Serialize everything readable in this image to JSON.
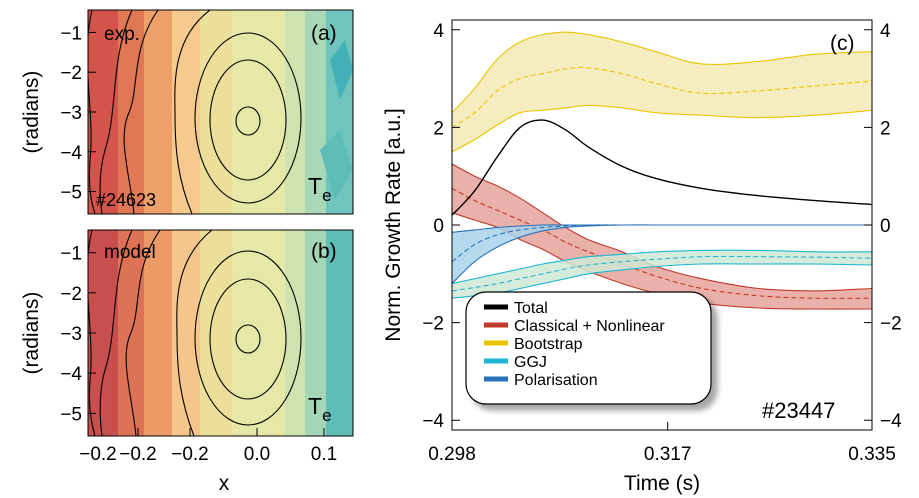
{
  "chart_data": [
    {
      "type": "heatmap",
      "panel_label": "(a)",
      "corner_label": "exp.",
      "shot_label": "#24623",
      "quantity_label_main": "T",
      "quantity_label_sub": "e",
      "ylabel": "(radians)",
      "xlabel": "",
      "y_ticks": [
        "−1",
        "−2",
        "−3",
        "−4",
        "−5"
      ],
      "x_ticks": [],
      "colormap": [
        "#d2544a",
        "#e07755",
        "#eea06a",
        "#f6c98c",
        "#ecdf9a",
        "#e5e8a6",
        "#cfe3b0",
        "#a9d8b6",
        "#70c4be",
        "#43b2b8"
      ],
      "grid": false
    },
    {
      "type": "heatmap",
      "panel_label": "(b)",
      "corner_label": "model",
      "quantity_label_main": "T",
      "quantity_label_sub": "e",
      "ylabel": "(radians)",
      "xlabel": "x",
      "y_ticks": [
        "−1",
        "−2",
        "−3",
        "−4",
        "−5"
      ],
      "x_ticks": [
        "−0.2",
        "−0.2",
        "0.0",
        "0.1"
      ],
      "x_tick_prefix": "−0.2",
      "grid": false
    },
    {
      "type": "line",
      "panel_label": "(c)",
      "shot_label": "#23447",
      "xlabel": "Time (s)",
      "ylabel": "Norm. Growth Rate [a.u.]",
      "xlim": [
        0.298,
        0.335
      ],
      "ylim": [
        -4.2,
        4.2
      ],
      "x_ticks": [
        "0.298",
        "0.317",
        "0.335"
      ],
      "y_ticks": [
        4,
        2,
        0,
        -2,
        -4
      ],
      "y_tick_labels": [
        "4",
        "2",
        "0",
        "−2",
        "−4"
      ],
      "legend_position": "bottom-left",
      "grid": false,
      "x": [
        0.298,
        0.3,
        0.302,
        0.304,
        0.306,
        0.308,
        0.31,
        0.313,
        0.316,
        0.32,
        0.325,
        0.33,
        0.335
      ],
      "series": [
        {
          "name": "Total",
          "color": "#000000",
          "values": [
            0.2,
            0.7,
            1.4,
            2.0,
            2.15,
            1.95,
            1.6,
            1.2,
            0.95,
            0.75,
            0.6,
            0.5,
            0.42
          ]
        },
        {
          "name": "Classical + Nonlinear",
          "color": "#c0392b",
          "fill": "#e6a39b",
          "values": [
            0.75,
            0.5,
            0.3,
            0.1,
            -0.1,
            -0.35,
            -0.55,
            -0.8,
            -1.05,
            -1.3,
            -1.45,
            -1.5,
            -1.5
          ],
          "upper": [
            1.25,
            1.0,
            0.8,
            0.55,
            0.25,
            -0.05,
            -0.3,
            -0.55,
            -0.85,
            -1.1,
            -1.3,
            -1.35,
            -1.3
          ],
          "lower": [
            0.25,
            0.1,
            -0.05,
            -0.3,
            -0.5,
            -0.75,
            -0.95,
            -1.2,
            -1.4,
            -1.6,
            -1.7,
            -1.72,
            -1.72
          ]
        },
        {
          "name": "Bootstrap",
          "color": "#e8c500",
          "fill": "#f3e9b4",
          "values": [
            2.0,
            2.3,
            2.75,
            3.0,
            3.1,
            3.2,
            3.22,
            3.1,
            2.9,
            2.7,
            2.75,
            2.85,
            2.95
          ],
          "upper": [
            2.3,
            2.8,
            3.4,
            3.75,
            3.9,
            3.95,
            3.9,
            3.75,
            3.55,
            3.3,
            3.35,
            3.5,
            3.55
          ],
          "lower": [
            1.5,
            1.75,
            2.05,
            2.3,
            2.35,
            2.4,
            2.45,
            2.4,
            2.3,
            2.25,
            2.2,
            2.25,
            2.35
          ]
        },
        {
          "name": "GGJ",
          "color": "#1fb5d6",
          "fill": "#cfe9d4",
          "values": [
            -1.35,
            -1.28,
            -1.2,
            -1.1,
            -1.0,
            -0.9,
            -0.82,
            -0.75,
            -0.7,
            -0.65,
            -0.65,
            -0.66,
            -0.68
          ],
          "upper": [
            -1.2,
            -1.1,
            -1.0,
            -0.9,
            -0.8,
            -0.72,
            -0.65,
            -0.6,
            -0.55,
            -0.52,
            -0.52,
            -0.55,
            -0.55
          ],
          "lower": [
            -1.5,
            -1.45,
            -1.4,
            -1.3,
            -1.2,
            -1.1,
            -1.0,
            -0.92,
            -0.85,
            -0.8,
            -0.8,
            -0.8,
            -0.82
          ]
        },
        {
          "name": "Polarisation",
          "color": "#2a72b8",
          "fill": "#a9d3ea",
          "values": [
            -0.75,
            -0.4,
            -0.2,
            -0.1,
            -0.05,
            -0.02,
            0.0,
            0.0,
            0.0,
            0.0,
            0.0,
            0.0,
            0.0
          ],
          "upper": [
            -0.15,
            -0.1,
            -0.05,
            -0.02,
            0.0,
            0.0,
            0.0,
            0.0,
            0.0,
            0.0,
            0.0,
            0.0,
            0.0
          ],
          "lower": [
            -1.2,
            -0.75,
            -0.45,
            -0.25,
            -0.12,
            -0.05,
            -0.02,
            0.0,
            0.0,
            0.0,
            0.0,
            0.0,
            0.0
          ]
        }
      ]
    }
  ]
}
